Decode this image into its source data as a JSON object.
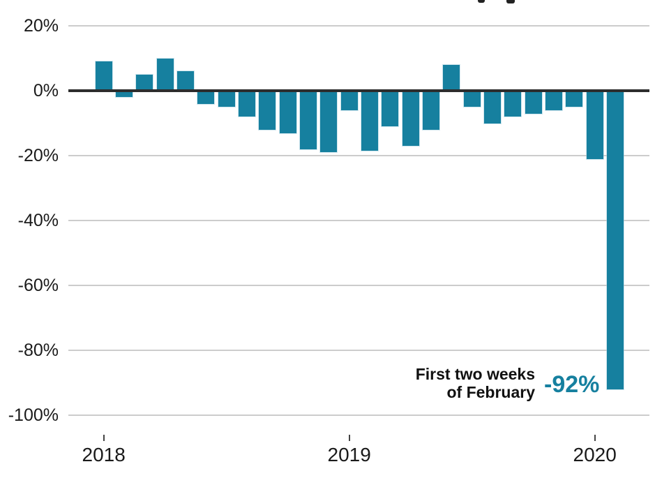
{
  "chart_data": {
    "type": "bar",
    "categories": [
      "Jan 2018",
      "Feb 2018",
      "Mar 2018",
      "Apr 2018",
      "May 2018",
      "Jun 2018",
      "Jul 2018",
      "Aug 2018",
      "Sep 2018",
      "Oct 2018",
      "Nov 2018",
      "Dec 2018",
      "Jan 2019",
      "Feb 2019",
      "Mar 2019",
      "Apr 2019",
      "May 2019",
      "Jun 2019",
      "Jul 2019",
      "Aug 2019",
      "Sep 2019",
      "Oct 2019",
      "Nov 2019",
      "Dec 2019",
      "Jan 2020",
      "First two weeks of February 2020"
    ],
    "values": [
      9,
      -2,
      5,
      10,
      6,
      -4,
      -5,
      -8,
      -12,
      -13,
      -18,
      -19,
      -6,
      -18.5,
      -11,
      -17,
      -12,
      8,
      -5,
      -10,
      -8,
      -7,
      -6,
      -5,
      -21,
      -92
    ],
    "unit": "percent",
    "ylim": [
      -100,
      20
    ],
    "grid": true,
    "yticks": [
      {
        "value": 20,
        "label": "20%"
      },
      {
        "value": 0,
        "label": "0%"
      },
      {
        "value": -20,
        "label": "-20%"
      },
      {
        "value": -40,
        "label": "-40%"
      },
      {
        "value": -60,
        "label": "-60%"
      },
      {
        "value": -80,
        "label": "-80%"
      },
      {
        "value": -100,
        "label": "-100%"
      }
    ],
    "xticks": [
      {
        "index": 0,
        "label": "2018"
      },
      {
        "index": 12,
        "label": "2019"
      },
      {
        "index": 24,
        "label": "2020"
      }
    ],
    "annotation": {
      "line1": "First two weeks",
      "line2": "of February",
      "value": "-92%"
    },
    "colors": {
      "bar": "#16809f",
      "annotation_value": "#16809f",
      "zero_line": "#2d2d2d",
      "gridline": "#cccccc",
      "axis_label": "#1a1a1a",
      "annotation_text": "#111111"
    }
  }
}
